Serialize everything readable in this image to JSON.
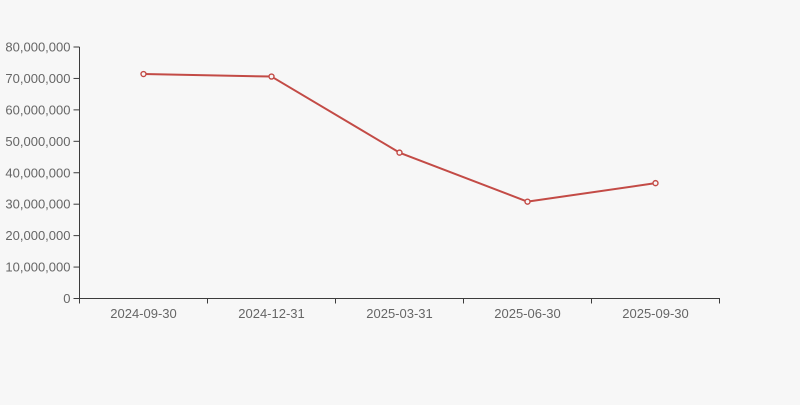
{
  "colors": {
    "background": "#f7f7f7",
    "line": "#c34b46",
    "marker_fill": "#f7f7f7",
    "axis": "#3c3c3c",
    "label": "#666666"
  },
  "chart_data": {
    "type": "line",
    "title": "",
    "xlabel": "",
    "ylabel": "",
    "categories": [
      "2024-09-30",
      "2024-12-31",
      "2025-03-31",
      "2025-06-30",
      "2025-09-30"
    ],
    "series": [
      {
        "name": "",
        "values": [
          71400000,
          70600000,
          46400000,
          30800000,
          36700000
        ]
      }
    ],
    "ylim": [
      0,
      80000000
    ],
    "yticks": [
      0,
      10000000,
      20000000,
      30000000,
      40000000,
      50000000,
      60000000,
      70000000,
      80000000
    ],
    "ytick_labels": [
      "0",
      "10,000,000",
      "20,000,000",
      "30,000,000",
      "40,000,000",
      "50,000,000",
      "60,000,000",
      "70,000,000",
      "80,000,000"
    ],
    "grid": false,
    "legend": false,
    "marker": "hollow-circle"
  }
}
